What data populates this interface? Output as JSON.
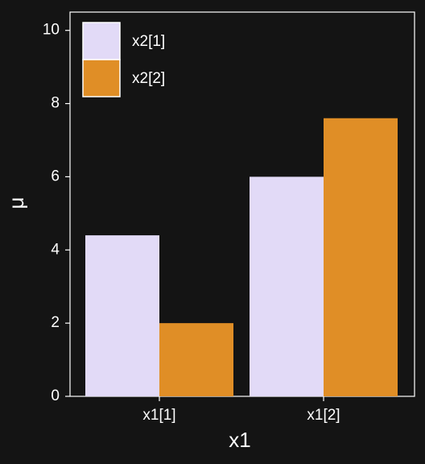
{
  "chart_data": {
    "type": "bar",
    "x_label": "x1",
    "y_label": "μ",
    "categories": [
      "x1[1]",
      "x1[2]"
    ],
    "series": [
      {
        "name": "x2[1]",
        "color": "#e2daf7",
        "values": [
          4.4,
          6.0
        ]
      },
      {
        "name": "x2[2]",
        "color": "#e08e26",
        "values": [
          2.0,
          7.6
        ]
      }
    ],
    "ylim": [
      0,
      10.5
    ],
    "yticks": [
      0,
      2,
      4,
      6,
      8,
      10
    ],
    "legend": "top-left"
  }
}
